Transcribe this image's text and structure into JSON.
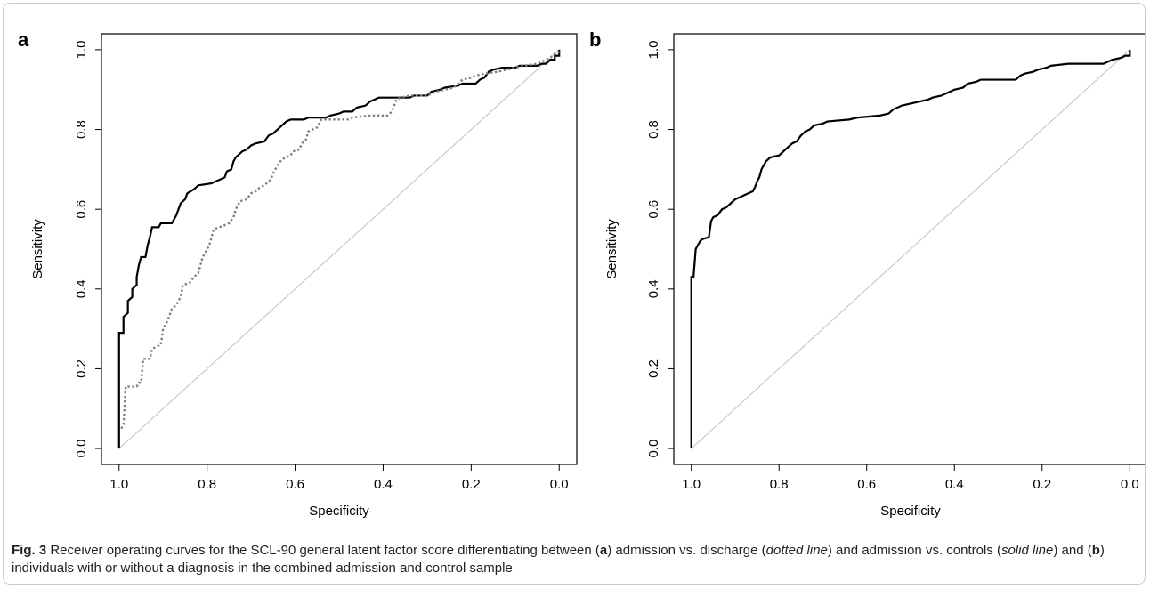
{
  "caption": {
    "label": "Fig. 3",
    "t1": " Receiver operating curves for the SCL-90 general latent factor score differentiating between (",
    "a": "a",
    "t2": ") admission vs. discharge (",
    "dotted": "dotted line",
    "t3": ") and admission vs. controls (",
    "solid": "solid line",
    "t4": ") and (",
    "b": "b",
    "t5": ") individuals with or without a diagnosis in the combined admission and control sample"
  },
  "chart_data": [
    {
      "panel_label": "a",
      "type": "line",
      "xlabel": "Specificity",
      "ylabel": "Sensitivity",
      "xlim": [
        1.0,
        0.0
      ],
      "ylim": [
        0.0,
        1.0
      ],
      "x_reversed": true,
      "xticks": [
        "1.0",
        "0.8",
        "0.6",
        "0.4",
        "0.2",
        "0.0"
      ],
      "yticks": [
        "0.0",
        "0.2",
        "0.4",
        "0.6",
        "0.8",
        "1.0"
      ],
      "reference_line": {
        "from": [
          1.0,
          0.0
        ],
        "to": [
          0.0,
          1.0
        ],
        "color": "#c0c0c0"
      },
      "series": [
        {
          "style": "solid",
          "color": "#000000",
          "points": [
            [
              1.0,
              0.0
            ],
            [
              1.0,
              0.29
            ],
            [
              0.99,
              0.29
            ],
            [
              0.99,
              0.33
            ],
            [
              0.98,
              0.34
            ],
            [
              0.98,
              0.37
            ],
            [
              0.97,
              0.38
            ],
            [
              0.97,
              0.4
            ],
            [
              0.96,
              0.41
            ],
            [
              0.96,
              0.43
            ],
            [
              0.955,
              0.46
            ],
            [
              0.95,
              0.48
            ],
            [
              0.94,
              0.48
            ],
            [
              0.935,
              0.51
            ],
            [
              0.93,
              0.53
            ],
            [
              0.925,
              0.555
            ],
            [
              0.91,
              0.555
            ],
            [
              0.905,
              0.565
            ],
            [
              0.88,
              0.565
            ],
            [
              0.87,
              0.585
            ],
            [
              0.865,
              0.6
            ],
            [
              0.86,
              0.615
            ],
            [
              0.85,
              0.625
            ],
            [
              0.845,
              0.64
            ],
            [
              0.83,
              0.65
            ],
            [
              0.82,
              0.66
            ],
            [
              0.79,
              0.665
            ],
            [
              0.78,
              0.67
            ],
            [
              0.77,
              0.675
            ],
            [
              0.76,
              0.68
            ],
            [
              0.755,
              0.695
            ],
            [
              0.745,
              0.7
            ],
            [
              0.74,
              0.72
            ],
            [
              0.735,
              0.73
            ],
            [
              0.72,
              0.745
            ],
            [
              0.71,
              0.75
            ],
            [
              0.7,
              0.76
            ],
            [
              0.69,
              0.765
            ],
            [
              0.67,
              0.77
            ],
            [
              0.66,
              0.785
            ],
            [
              0.65,
              0.79
            ],
            [
              0.64,
              0.8
            ],
            [
              0.63,
              0.81
            ],
            [
              0.62,
              0.82
            ],
            [
              0.61,
              0.825
            ],
            [
              0.58,
              0.825
            ],
            [
              0.57,
              0.83
            ],
            [
              0.53,
              0.83
            ],
            [
              0.52,
              0.835
            ],
            [
              0.5,
              0.84
            ],
            [
              0.49,
              0.845
            ],
            [
              0.47,
              0.845
            ],
            [
              0.46,
              0.855
            ],
            [
              0.44,
              0.86
            ],
            [
              0.43,
              0.87
            ],
            [
              0.42,
              0.875
            ],
            [
              0.41,
              0.88
            ],
            [
              0.34,
              0.88
            ],
            [
              0.33,
              0.885
            ],
            [
              0.3,
              0.885
            ],
            [
              0.29,
              0.895
            ],
            [
              0.27,
              0.9
            ],
            [
              0.26,
              0.905
            ],
            [
              0.23,
              0.91
            ],
            [
              0.22,
              0.915
            ],
            [
              0.19,
              0.915
            ],
            [
              0.18,
              0.925
            ],
            [
              0.17,
              0.93
            ],
            [
              0.16,
              0.945
            ],
            [
              0.15,
              0.95
            ],
            [
              0.13,
              0.955
            ],
            [
              0.1,
              0.955
            ],
            [
              0.09,
              0.96
            ],
            [
              0.05,
              0.96
            ],
            [
              0.04,
              0.965
            ],
            [
              0.03,
              0.965
            ],
            [
              0.02,
              0.975
            ],
            [
              0.01,
              0.975
            ],
            [
              0.01,
              0.985
            ],
            [
              0.0,
              0.985
            ],
            [
              0.0,
              1.0
            ]
          ]
        },
        {
          "style": "dotted",
          "color": "#7f7f7f",
          "points": [
            [
              0.995,
              0.05
            ],
            [
              0.99,
              0.06
            ],
            [
              0.985,
              0.155
            ],
            [
              0.96,
              0.155
            ],
            [
              0.955,
              0.165
            ],
            [
              0.95,
              0.165
            ],
            [
              0.945,
              0.225
            ],
            [
              0.93,
              0.225
            ],
            [
              0.925,
              0.25
            ],
            [
              0.905,
              0.26
            ],
            [
              0.9,
              0.3
            ],
            [
              0.89,
              0.32
            ],
            [
              0.88,
              0.35
            ],
            [
              0.87,
              0.36
            ],
            [
              0.86,
              0.38
            ],
            [
              0.855,
              0.41
            ],
            [
              0.84,
              0.415
            ],
            [
              0.83,
              0.43
            ],
            [
              0.82,
              0.44
            ],
            [
              0.815,
              0.46
            ],
            [
              0.81,
              0.48
            ],
            [
              0.8,
              0.5
            ],
            [
              0.795,
              0.51
            ],
            [
              0.79,
              0.53
            ],
            [
              0.785,
              0.55
            ],
            [
              0.76,
              0.56
            ],
            [
              0.75,
              0.565
            ],
            [
              0.74,
              0.58
            ],
            [
              0.735,
              0.6
            ],
            [
              0.725,
              0.62
            ],
            [
              0.71,
              0.625
            ],
            [
              0.7,
              0.64
            ],
            [
              0.69,
              0.645
            ],
            [
              0.68,
              0.655
            ],
            [
              0.67,
              0.66
            ],
            [
              0.665,
              0.665
            ],
            [
              0.655,
              0.675
            ],
            [
              0.65,
              0.69
            ],
            [
              0.64,
              0.71
            ],
            [
              0.63,
              0.725
            ],
            [
              0.61,
              0.735
            ],
            [
              0.605,
              0.745
            ],
            [
              0.59,
              0.75
            ],
            [
              0.585,
              0.765
            ],
            [
              0.575,
              0.775
            ],
            [
              0.57,
              0.795
            ],
            [
              0.56,
              0.8
            ],
            [
              0.55,
              0.805
            ],
            [
              0.545,
              0.815
            ],
            [
              0.54,
              0.825
            ],
            [
              0.48,
              0.825
            ],
            [
              0.47,
              0.83
            ],
            [
              0.43,
              0.835
            ],
            [
              0.39,
              0.835
            ],
            [
              0.38,
              0.845
            ],
            [
              0.375,
              0.86
            ],
            [
              0.37,
              0.875
            ],
            [
              0.36,
              0.88
            ],
            [
              0.34,
              0.885
            ],
            [
              0.3,
              0.885
            ],
            [
              0.29,
              0.89
            ],
            [
              0.28,
              0.895
            ],
            [
              0.24,
              0.905
            ],
            [
              0.23,
              0.915
            ],
            [
              0.22,
              0.925
            ],
            [
              0.2,
              0.93
            ],
            [
              0.19,
              0.935
            ],
            [
              0.17,
              0.94
            ],
            [
              0.14,
              0.945
            ],
            [
              0.12,
              0.95
            ],
            [
              0.1,
              0.955
            ],
            [
              0.08,
              0.96
            ],
            [
              0.05,
              0.965
            ],
            [
              0.04,
              0.97
            ],
            [
              0.03,
              0.975
            ],
            [
              0.02,
              0.98
            ],
            [
              0.01,
              0.99
            ],
            [
              0.0,
              0.995
            ],
            [
              0.0,
              1.0
            ]
          ]
        }
      ]
    },
    {
      "panel_label": "b",
      "type": "line",
      "xlabel": "Specificity",
      "ylabel": "Sensitivity",
      "xlim": [
        1.0,
        0.0
      ],
      "ylim": [
        0.0,
        1.0
      ],
      "x_reversed": true,
      "xticks": [
        "1.0",
        "0.8",
        "0.6",
        "0.4",
        "0.2",
        "0.0"
      ],
      "yticks": [
        "0.0",
        "0.2",
        "0.4",
        "0.6",
        "0.8",
        "1.0"
      ],
      "reference_line": {
        "from": [
          1.0,
          0.0
        ],
        "to": [
          0.0,
          1.0
        ],
        "color": "#c0c0c0"
      },
      "series": [
        {
          "style": "solid",
          "color": "#000000",
          "points": [
            [
              1.0,
              0.0
            ],
            [
              1.0,
              0.43
            ],
            [
              0.995,
              0.43
            ],
            [
              0.99,
              0.5
            ],
            [
              0.985,
              0.51
            ],
            [
              0.98,
              0.52
            ],
            [
              0.975,
              0.525
            ],
            [
              0.96,
              0.53
            ],
            [
              0.955,
              0.57
            ],
            [
              0.95,
              0.58
            ],
            [
              0.94,
              0.585
            ],
            [
              0.93,
              0.6
            ],
            [
              0.92,
              0.605
            ],
            [
              0.91,
              0.615
            ],
            [
              0.9,
              0.625
            ],
            [
              0.89,
              0.63
            ],
            [
              0.88,
              0.635
            ],
            [
              0.87,
              0.64
            ],
            [
              0.86,
              0.645
            ],
            [
              0.855,
              0.655
            ],
            [
              0.85,
              0.67
            ],
            [
              0.845,
              0.68
            ],
            [
              0.84,
              0.7
            ],
            [
              0.835,
              0.71
            ],
            [
              0.83,
              0.72
            ],
            [
              0.82,
              0.73
            ],
            [
              0.8,
              0.735
            ],
            [
              0.79,
              0.745
            ],
            [
              0.78,
              0.755
            ],
            [
              0.77,
              0.765
            ],
            [
              0.76,
              0.77
            ],
            [
              0.75,
              0.785
            ],
            [
              0.74,
              0.795
            ],
            [
              0.73,
              0.8
            ],
            [
              0.72,
              0.81
            ],
            [
              0.7,
              0.815
            ],
            [
              0.69,
              0.82
            ],
            [
              0.64,
              0.825
            ],
            [
              0.62,
              0.83
            ],
            [
              0.57,
              0.835
            ],
            [
              0.55,
              0.84
            ],
            [
              0.54,
              0.85
            ],
            [
              0.52,
              0.86
            ],
            [
              0.5,
              0.865
            ],
            [
              0.48,
              0.87
            ],
            [
              0.46,
              0.875
            ],
            [
              0.45,
              0.88
            ],
            [
              0.43,
              0.885
            ],
            [
              0.41,
              0.895
            ],
            [
              0.4,
              0.9
            ],
            [
              0.38,
              0.905
            ],
            [
              0.37,
              0.915
            ],
            [
              0.35,
              0.92
            ],
            [
              0.34,
              0.925
            ],
            [
              0.26,
              0.925
            ],
            [
              0.25,
              0.935
            ],
            [
              0.24,
              0.94
            ],
            [
              0.22,
              0.945
            ],
            [
              0.21,
              0.95
            ],
            [
              0.19,
              0.955
            ],
            [
              0.18,
              0.96
            ],
            [
              0.14,
              0.965
            ],
            [
              0.06,
              0.965
            ],
            [
              0.05,
              0.97
            ],
            [
              0.04,
              0.975
            ],
            [
              0.02,
              0.98
            ],
            [
              0.01,
              0.985
            ],
            [
              0.0,
              0.985
            ],
            [
              0.0,
              1.0
            ]
          ]
        }
      ]
    }
  ]
}
